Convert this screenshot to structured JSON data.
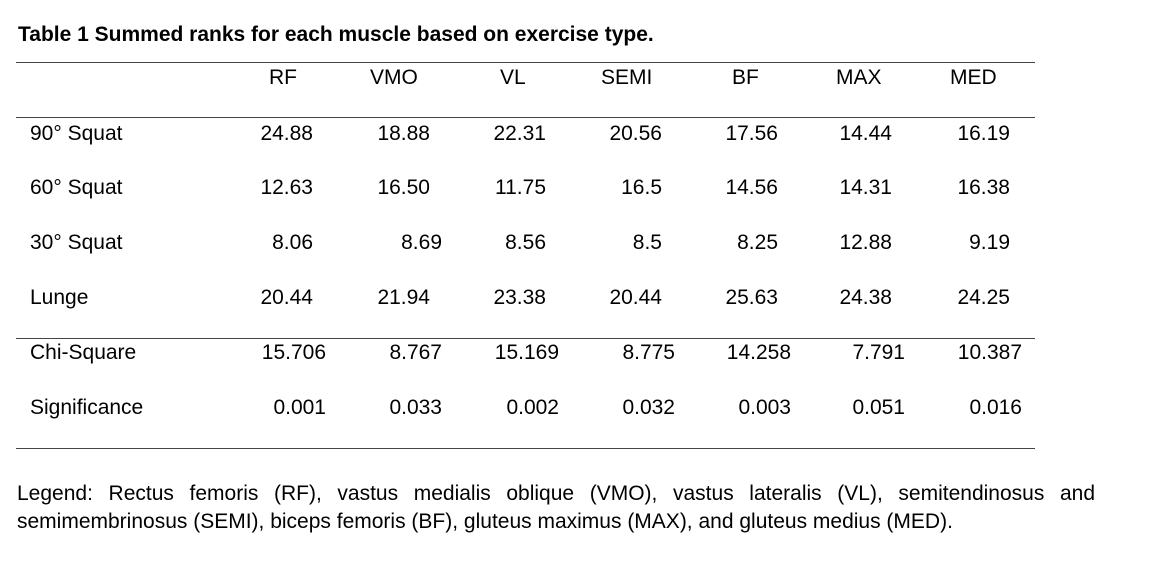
{
  "caption": "Table 1 Summed ranks for each muscle based on exercise type.",
  "table": {
    "columns": [
      "RF",
      "VMO",
      "VL",
      "SEMI",
      "BF",
      "MAX",
      "MED"
    ],
    "rows": [
      {
        "label": "90° Squat",
        "values": [
          "24.88",
          "18.88",
          "22.31",
          "20.56",
          "17.56",
          "14.44",
          "16.19"
        ]
      },
      {
        "label": "60° Squat",
        "values": [
          "12.63",
          "16.50",
          "11.75",
          "16.5",
          "14.56",
          "14.31",
          "16.38"
        ]
      },
      {
        "label": "30° Squat",
        "values": [
          "8.06",
          "8.69",
          "8.56",
          "8.5",
          "8.25",
          "12.88",
          "9.19"
        ]
      },
      {
        "label": "Lunge",
        "values": [
          "20.44",
          "21.94",
          "23.38",
          "20.44",
          "25.63",
          "24.38",
          "24.25"
        ]
      },
      {
        "label": "Chi-Square",
        "values": [
          "15.706",
          "8.767",
          "15.169",
          "8.775",
          "14.258",
          "7.791",
          "10.387"
        ]
      },
      {
        "label": "Significance",
        "values": [
          "0.001",
          "0.033",
          "0.002",
          "0.032",
          "0.003",
          "0.051",
          "0.016"
        ]
      }
    ]
  },
  "legend": "Legend: Rectus femoris (RF), vastus medialis oblique (VMO), vastus lateralis (VL), semitendinosus and semimembrinosus (SEMI), biceps femoris (BF), gluteus maximus (MAX), and gluteus medius (MED)."
}
